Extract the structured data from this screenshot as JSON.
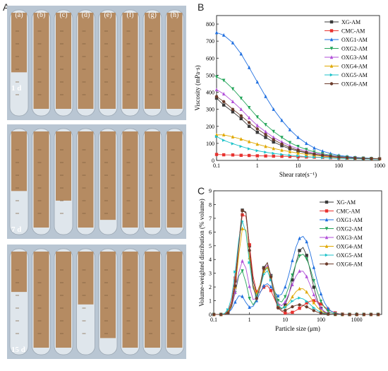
{
  "panel_labels": {
    "a": "A",
    "b": "B",
    "c": "C"
  },
  "photo_panel": {
    "tube_labels": [
      "(a)",
      "(b)",
      "(c)",
      "(d)",
      "(e)",
      "(f)",
      "(g)",
      "(h)"
    ],
    "rows": [
      {
        "label": "1 d",
        "sediment_level": [
          0.62,
          1.0,
          1.0,
          1.0,
          1.0,
          1.0,
          1.0,
          1.0
        ]
      },
      {
        "label": "7 d",
        "sediment_level": [
          0.62,
          1.0,
          0.72,
          1.0,
          0.92,
          1.0,
          1.0,
          1.0
        ]
      },
      {
        "label": "15 d",
        "sediment_level": [
          0.42,
          1.0,
          1.0,
          0.55,
          0.9,
          1.0,
          1.0,
          1.0
        ]
      }
    ],
    "colors": {
      "background": "#b9c6d3",
      "sediment": "#b58b62",
      "liquid": "#dfe6ec"
    }
  },
  "series_colors": [
    "#3a3a3a",
    "#e8322f",
    "#1f6fe0",
    "#24a55a",
    "#b14fd8",
    "#e0a800",
    "#1cc2c9",
    "#6b3b2a"
  ],
  "chart_data": [
    {
      "type": "line",
      "xscale": "log",
      "xlabel": "Shear rate(s⁻¹)",
      "ylabel": "Viscosity (mPa·s)",
      "xlim": [
        0.1,
        1000
      ],
      "ylim": [
        0,
        850
      ],
      "xticks": [
        "0.1",
        "1",
        "10",
        "100",
        "1000"
      ],
      "yticks": [
        "0",
        "100",
        "200",
        "300",
        "400",
        "500",
        "600",
        "700",
        "800"
      ],
      "legend_position": "top-right",
      "x": [
        0.1,
        0.15,
        0.25,
        0.4,
        0.63,
        1,
        1.6,
        2.5,
        4,
        6.3,
        10,
        16,
        25,
        40,
        63,
        100,
        160,
        250,
        400,
        630,
        1000
      ],
      "series": [
        {
          "name": "XG-AM",
          "values": [
            365,
            325,
            285,
            245,
            200,
            165,
            135,
            108,
            86,
            68,
            55,
            44,
            36,
            29,
            24,
            20,
            17,
            14,
            12,
            10,
            9
          ]
        },
        {
          "name": "CMC-AM",
          "values": [
            35,
            33,
            32,
            30,
            29,
            27,
            26,
            25,
            24,
            23,
            21,
            20,
            19,
            18,
            16,
            15,
            14,
            13,
            12,
            11,
            10
          ]
        },
        {
          "name": "OXG1-AM",
          "values": [
            750,
            735,
            690,
            625,
            545,
            460,
            375,
            300,
            235,
            180,
            135,
            100,
            73,
            54,
            40,
            30,
            23,
            18,
            15,
            12,
            10
          ]
        },
        {
          "name": "OXG2-AM",
          "values": [
            490,
            470,
            420,
            365,
            310,
            255,
            210,
            170,
            135,
            105,
            82,
            64,
            50,
            39,
            31,
            25,
            20,
            16,
            13,
            11,
            9
          ]
        },
        {
          "name": "OXG3-AM",
          "values": [
            415,
            390,
            345,
            300,
            250,
            205,
            168,
            135,
            108,
            86,
            68,
            54,
            43,
            34,
            27,
            22,
            18,
            15,
            12,
            10,
            9
          ]
        },
        {
          "name": "OXG4-AM",
          "values": [
            150,
            150,
            138,
            125,
            110,
            95,
            82,
            70,
            60,
            51,
            43,
            36,
            30,
            25,
            21,
            18,
            15,
            13,
            11,
            10,
            9
          ]
        },
        {
          "name": "OXG5-AM",
          "values": [
            140,
            118,
            98,
            82,
            68,
            57,
            48,
            41,
            35,
            30,
            26,
            22,
            19,
            16,
            14,
            12,
            11,
            10,
            9,
            8,
            8
          ]
        },
        {
          "name": "OXG6-AM",
          "values": [
            375,
            345,
            300,
            262,
            222,
            185,
            152,
            122,
            96,
            76,
            60,
            47,
            37,
            30,
            24,
            19,
            16,
            13,
            11,
            10,
            9
          ]
        }
      ]
    },
    {
      "type": "line",
      "xscale": "log",
      "xlabel": "Particle size (μm)",
      "ylabel": "Volume-weighted distribution (% volume)",
      "xlim": [
        0.1,
        5000
      ],
      "ylim": [
        0,
        9
      ],
      "xticks": [
        "0.1",
        "1",
        "10",
        "100",
        "1000"
      ],
      "yticks": [
        "0",
        "1",
        "2",
        "3",
        "4",
        "5",
        "6",
        "7",
        "8",
        "9"
      ],
      "legend_position": "top-right",
      "series": [
        {
          "name": "XG-AM",
          "peaks": [
            [
              0.7,
              7.9,
              0.16
            ],
            [
              3.0,
              3.8,
              0.16
            ],
            [
              30,
              4.9,
              0.24
            ]
          ]
        },
        {
          "name": "CMC-AM",
          "peaks": [
            [
              0.7,
              7.5,
              0.17
            ],
            [
              3.0,
              2.1,
              0.2
            ],
            [
              60,
              1.0,
              0.3
            ]
          ]
        },
        {
          "name": "OXG1-AM",
          "peaks": [
            [
              0.55,
              1.4,
              0.15
            ],
            [
              3.0,
              2.2,
              0.22
            ],
            [
              30,
              5.7,
              0.32
            ]
          ]
        },
        {
          "name": "OXG2-AM",
          "peaks": [
            [
              0.6,
              3.2,
              0.15
            ],
            [
              3.0,
              3.4,
              0.18
            ],
            [
              30,
              4.4,
              0.3
            ]
          ]
        },
        {
          "name": "OXG3-AM",
          "peaks": [
            [
              0.65,
              3.9,
              0.16
            ],
            [
              3.0,
              3.6,
              0.17
            ],
            [
              28,
              3.2,
              0.28
            ]
          ]
        },
        {
          "name": "OXG4-AM",
          "peaks": [
            [
              0.7,
              6.5,
              0.16
            ],
            [
              3.0,
              3.5,
              0.17
            ],
            [
              28,
              1.9,
              0.28
            ]
          ]
        },
        {
          "name": "OXG5-AM",
          "peaks": [
            [
              0.65,
              6.8,
              0.17
            ],
            [
              3.0,
              3.2,
              0.17
            ],
            [
              25,
              1.2,
              0.3
            ]
          ]
        },
        {
          "name": "OXG6-AM",
          "peaks": [
            [
              0.7,
              7.9,
              0.15
            ],
            [
              3.0,
              3.8,
              0.15
            ],
            [
              25,
              0.7,
              0.3
            ]
          ]
        }
      ]
    }
  ]
}
